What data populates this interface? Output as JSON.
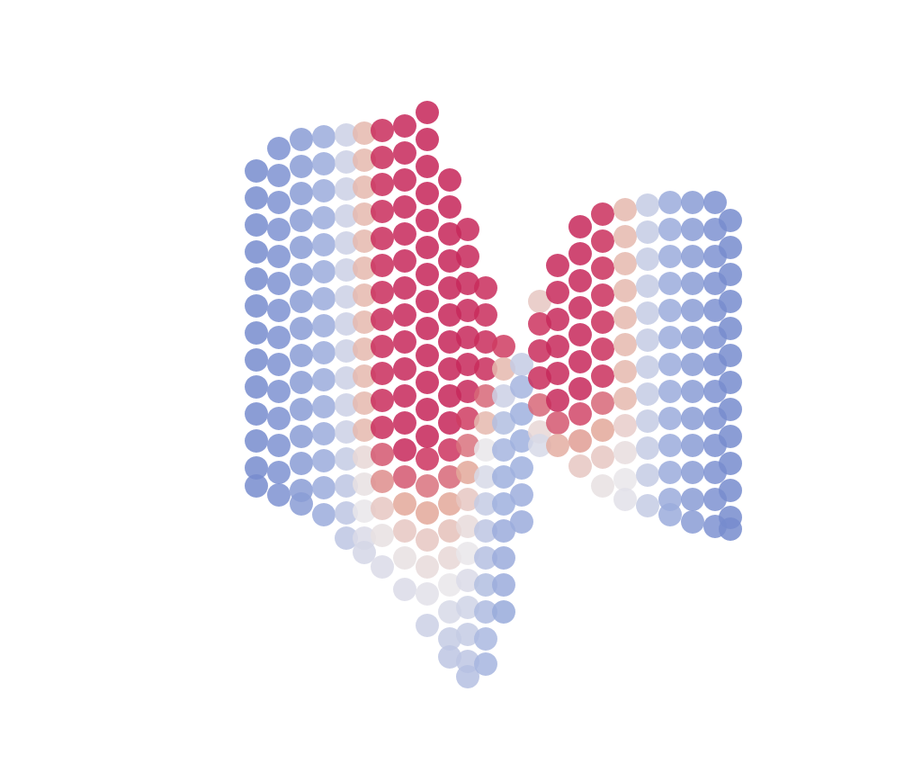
{
  "chart_data": {
    "type": "scatter",
    "xlim": [
      0,
      1015
    ],
    "ylim": [
      -869,
      0
    ],
    "tick_labels": false,
    "grid": false,
    "color_range": [
      0,
      1
    ],
    "points": [
      [
        285,
        -190,
        0.02
      ],
      [
        285,
        -220,
        0.02
      ],
      [
        285,
        -250,
        0.02
      ],
      [
        285,
        -280,
        0.02
      ],
      [
        285,
        -310,
        0.02
      ],
      [
        285,
        -340,
        0.02
      ],
      [
        285,
        -370,
        0.02
      ],
      [
        285,
        -400,
        0.02
      ],
      [
        285,
        -430,
        0.02
      ],
      [
        285,
        -460,
        0.02
      ],
      [
        285,
        -490,
        0.02
      ],
      [
        285,
        -520,
        0.02
      ],
      [
        285,
        -540,
        0.02
      ],
      [
        310,
        -165,
        0.05
      ],
      [
        310,
        -195,
        0.05
      ],
      [
        310,
        -225,
        0.05
      ],
      [
        310,
        -255,
        0.05
      ],
      [
        310,
        -285,
        0.05
      ],
      [
        310,
        -315,
        0.05
      ],
      [
        310,
        -345,
        0.05
      ],
      [
        310,
        -375,
        0.05
      ],
      [
        310,
        -405,
        0.05
      ],
      [
        310,
        -435,
        0.05
      ],
      [
        310,
        -465,
        0.05
      ],
      [
        310,
        -495,
        0.05
      ],
      [
        310,
        -525,
        0.05
      ],
      [
        310,
        -550,
        0.05
      ],
      [
        335,
        -155,
        0.1
      ],
      [
        335,
        -185,
        0.1
      ],
      [
        335,
        -215,
        0.1
      ],
      [
        335,
        -245,
        0.1
      ],
      [
        335,
        -275,
        0.1
      ],
      [
        335,
        -305,
        0.1
      ],
      [
        335,
        -335,
        0.1
      ],
      [
        335,
        -365,
        0.1
      ],
      [
        335,
        -395,
        0.1
      ],
      [
        335,
        -425,
        0.1
      ],
      [
        335,
        -455,
        0.1
      ],
      [
        335,
        -485,
        0.1
      ],
      [
        335,
        -515,
        0.1
      ],
      [
        335,
        -545,
        0.1
      ],
      [
        335,
        -560,
        0.1
      ],
      [
        360,
        -152,
        0.18
      ],
      [
        360,
        -182,
        0.18
      ],
      [
        360,
        -212,
        0.18
      ],
      [
        360,
        -242,
        0.18
      ],
      [
        360,
        -272,
        0.18
      ],
      [
        360,
        -302,
        0.18
      ],
      [
        360,
        -332,
        0.18
      ],
      [
        360,
        -362,
        0.18
      ],
      [
        360,
        -392,
        0.18
      ],
      [
        360,
        -422,
        0.18
      ],
      [
        360,
        -452,
        0.18
      ],
      [
        360,
        -482,
        0.18
      ],
      [
        360,
        -512,
        0.18
      ],
      [
        360,
        -542,
        0.18
      ],
      [
        360,
        -572,
        0.18
      ],
      [
        385,
        -150,
        0.32
      ],
      [
        385,
        -180,
        0.32
      ],
      [
        385,
        -210,
        0.32
      ],
      [
        385,
        -240,
        0.32
      ],
      [
        385,
        -270,
        0.32
      ],
      [
        385,
        -300,
        0.32
      ],
      [
        385,
        -330,
        0.32
      ],
      [
        385,
        -360,
        0.32
      ],
      [
        385,
        -390,
        0.32
      ],
      [
        385,
        -420,
        0.32
      ],
      [
        385,
        -450,
        0.32
      ],
      [
        385,
        -480,
        0.32
      ],
      [
        385,
        -510,
        0.3
      ],
      [
        385,
        -540,
        0.28
      ],
      [
        385,
        -570,
        0.28
      ],
      [
        385,
        -598,
        0.28
      ],
      [
        405,
        -148,
        0.55
      ],
      [
        405,
        -178,
        0.55
      ],
      [
        405,
        -208,
        0.55
      ],
      [
        405,
        -238,
        0.55
      ],
      [
        405,
        -268,
        0.55
      ],
      [
        405,
        -298,
        0.55
      ],
      [
        405,
        -328,
        0.55
      ],
      [
        405,
        -358,
        0.55
      ],
      [
        405,
        -388,
        0.55
      ],
      [
        405,
        -418,
        0.55
      ],
      [
        405,
        -448,
        0.55
      ],
      [
        405,
        -478,
        0.55
      ],
      [
        405,
        -508,
        0.45
      ],
      [
        405,
        -538,
        0.42
      ],
      [
        405,
        -568,
        0.4
      ],
      [
        405,
        -598,
        0.36
      ],
      [
        405,
        -614,
        0.34
      ],
      [
        425,
        -145,
        0.9
      ],
      [
        425,
        -175,
        0.9
      ],
      [
        425,
        -205,
        0.9
      ],
      [
        425,
        -235,
        0.9
      ],
      [
        425,
        -265,
        0.9
      ],
      [
        425,
        -295,
        0.9
      ],
      [
        425,
        -325,
        0.9
      ],
      [
        425,
        -355,
        0.9
      ],
      [
        425,
        -385,
        0.9
      ],
      [
        425,
        -415,
        0.9
      ],
      [
        425,
        -445,
        0.9
      ],
      [
        425,
        -475,
        0.9
      ],
      [
        425,
        -505,
        0.75
      ],
      [
        425,
        -535,
        0.65
      ],
      [
        425,
        -565,
        0.5
      ],
      [
        425,
        -595,
        0.42
      ],
      [
        425,
        -630,
        0.36
      ],
      [
        450,
        -140,
        0.93
      ],
      [
        450,
        -170,
        0.93
      ],
      [
        450,
        -200,
        0.93
      ],
      [
        450,
        -230,
        0.93
      ],
      [
        450,
        -260,
        0.93
      ],
      [
        450,
        -290,
        0.93
      ],
      [
        450,
        -320,
        0.93
      ],
      [
        450,
        -350,
        0.93
      ],
      [
        450,
        -380,
        0.93
      ],
      [
        450,
        -410,
        0.93
      ],
      [
        450,
        -440,
        0.93
      ],
      [
        450,
        -470,
        0.93
      ],
      [
        450,
        -500,
        0.93
      ],
      [
        450,
        -530,
        0.75
      ],
      [
        450,
        -560,
        0.6
      ],
      [
        450,
        -590,
        0.5
      ],
      [
        450,
        -620,
        0.42
      ],
      [
        450,
        -655,
        0.36
      ],
      [
        475,
        -125,
        0.95
      ],
      [
        475,
        -155,
        0.95
      ],
      [
        475,
        -185,
        0.95
      ],
      [
        475,
        -215,
        0.95
      ],
      [
        475,
        -245,
        0.95
      ],
      [
        475,
        -275,
        0.95
      ],
      [
        475,
        -305,
        0.95
      ],
      [
        475,
        -335,
        0.95
      ],
      [
        475,
        -365,
        0.95
      ],
      [
        475,
        -395,
        0.95
      ],
      [
        475,
        -425,
        0.95
      ],
      [
        475,
        -455,
        0.95
      ],
      [
        475,
        -485,
        0.95
      ],
      [
        475,
        -510,
        0.85
      ],
      [
        475,
        -540,
        0.7
      ],
      [
        475,
        -570,
        0.6
      ],
      [
        475,
        -600,
        0.5
      ],
      [
        475,
        -630,
        0.44
      ],
      [
        475,
        -660,
        0.38
      ],
      [
        475,
        -695,
        0.32
      ],
      [
        500,
        -200,
        0.95
      ],
      [
        500,
        -230,
        0.95
      ],
      [
        500,
        -260,
        0.95
      ],
      [
        500,
        -290,
        0.95
      ],
      [
        500,
        -320,
        0.95
      ],
      [
        500,
        -350,
        0.95
      ],
      [
        500,
        -380,
        0.95
      ],
      [
        500,
        -410,
        0.95
      ],
      [
        500,
        -440,
        0.95
      ],
      [
        500,
        -470,
        0.95
      ],
      [
        500,
        -500,
        0.85
      ],
      [
        500,
        -530,
        0.72
      ],
      [
        500,
        -560,
        0.6
      ],
      [
        500,
        -590,
        0.52
      ],
      [
        500,
        -620,
        0.45
      ],
      [
        500,
        -650,
        0.4
      ],
      [
        500,
        -680,
        0.35
      ],
      [
        500,
        -710,
        0.3
      ],
      [
        500,
        -730,
        0.28
      ],
      [
        520,
        -255,
        0.93
      ],
      [
        520,
        -285,
        0.93
      ],
      [
        520,
        -315,
        0.93
      ],
      [
        520,
        -345,
        0.93
      ],
      [
        520,
        -375,
        0.93
      ],
      [
        520,
        -405,
        0.93
      ],
      [
        520,
        -435,
        0.93
      ],
      [
        520,
        -465,
        0.8
      ],
      [
        520,
        -495,
        0.7
      ],
      [
        520,
        -525,
        0.6
      ],
      [
        520,
        -555,
        0.5
      ],
      [
        520,
        -585,
        0.44
      ],
      [
        520,
        -615,
        0.4
      ],
      [
        520,
        -645,
        0.36
      ],
      [
        520,
        -675,
        0.33
      ],
      [
        520,
        -705,
        0.3
      ],
      [
        520,
        -735,
        0.28
      ],
      [
        520,
        -752,
        0.26
      ],
      [
        540,
        -320,
        0.9
      ],
      [
        540,
        -350,
        0.9
      ],
      [
        540,
        -380,
        0.9
      ],
      [
        540,
        -410,
        0.9
      ],
      [
        540,
        -440,
        0.72
      ],
      [
        540,
        -470,
        0.55
      ],
      [
        540,
        -500,
        0.4
      ],
      [
        540,
        -530,
        0.35
      ],
      [
        540,
        -560,
        0.3
      ],
      [
        540,
        -590,
        0.28
      ],
      [
        540,
        -620,
        0.26
      ],
      [
        540,
        -650,
        0.25
      ],
      [
        540,
        -680,
        0.24
      ],
      [
        540,
        -710,
        0.23
      ],
      [
        540,
        -738,
        0.22
      ],
      [
        560,
        -385,
        0.8
      ],
      [
        560,
        -410,
        0.55
      ],
      [
        560,
        -440,
        0.32
      ],
      [
        560,
        -470,
        0.25
      ],
      [
        560,
        -500,
        0.22
      ],
      [
        560,
        -530,
        0.2
      ],
      [
        560,
        -560,
        0.2
      ],
      [
        560,
        -590,
        0.18
      ],
      [
        560,
        -620,
        0.18
      ],
      [
        560,
        -650,
        0.18
      ],
      [
        560,
        -680,
        0.17
      ],
      [
        580,
        -405,
        0.3
      ],
      [
        580,
        -430,
        0.22
      ],
      [
        580,
        -460,
        0.2
      ],
      [
        580,
        -490,
        0.2
      ],
      [
        580,
        -520,
        0.2
      ],
      [
        580,
        -550,
        0.19
      ],
      [
        580,
        -580,
        0.18
      ],
      [
        600,
        -335,
        0.5
      ],
      [
        600,
        -360,
        0.85
      ],
      [
        600,
        -390,
        0.9
      ],
      [
        600,
        -420,
        0.9
      ],
      [
        600,
        -450,
        0.72
      ],
      [
        600,
        -480,
        0.45
      ],
      [
        600,
        -495,
        0.35
      ],
      [
        620,
        -295,
        0.92
      ],
      [
        620,
        -325,
        0.92
      ],
      [
        620,
        -355,
        0.92
      ],
      [
        620,
        -385,
        0.92
      ],
      [
        620,
        -415,
        0.92
      ],
      [
        620,
        -445,
        0.92
      ],
      [
        620,
        -470,
        0.75
      ],
      [
        620,
        -495,
        0.58
      ],
      [
        645,
        -252,
        0.93
      ],
      [
        645,
        -282,
        0.93
      ],
      [
        645,
        -312,
        0.93
      ],
      [
        645,
        -342,
        0.93
      ],
      [
        645,
        -372,
        0.93
      ],
      [
        645,
        -402,
        0.93
      ],
      [
        645,
        -432,
        0.93
      ],
      [
        645,
        -460,
        0.78
      ],
      [
        645,
        -490,
        0.62
      ],
      [
        645,
        -518,
        0.5
      ],
      [
        670,
        -238,
        0.88
      ],
      [
        670,
        -268,
        0.88
      ],
      [
        670,
        -298,
        0.88
      ],
      [
        670,
        -328,
        0.88
      ],
      [
        670,
        -358,
        0.88
      ],
      [
        670,
        -388,
        0.88
      ],
      [
        670,
        -418,
        0.88
      ],
      [
        670,
        -448,
        0.72
      ],
      [
        670,
        -478,
        0.6
      ],
      [
        670,
        -508,
        0.5
      ],
      [
        670,
        -540,
        0.42
      ],
      [
        695,
        -233,
        0.55
      ],
      [
        695,
        -263,
        0.55
      ],
      [
        695,
        -293,
        0.55
      ],
      [
        695,
        -323,
        0.55
      ],
      [
        695,
        -353,
        0.55
      ],
      [
        695,
        -383,
        0.55
      ],
      [
        695,
        -413,
        0.55
      ],
      [
        695,
        -443,
        0.55
      ],
      [
        695,
        -473,
        0.48
      ],
      [
        695,
        -503,
        0.43
      ],
      [
        695,
        -533,
        0.4
      ],
      [
        695,
        -555,
        0.38
      ],
      [
        720,
        -228,
        0.3
      ],
      [
        720,
        -258,
        0.3
      ],
      [
        720,
        -288,
        0.3
      ],
      [
        720,
        -318,
        0.3
      ],
      [
        720,
        -348,
        0.3
      ],
      [
        720,
        -378,
        0.3
      ],
      [
        720,
        -408,
        0.3
      ],
      [
        720,
        -438,
        0.3
      ],
      [
        720,
        -468,
        0.3
      ],
      [
        720,
        -498,
        0.3
      ],
      [
        720,
        -528,
        0.3
      ],
      [
        720,
        -562,
        0.3
      ],
      [
        745,
        -225,
        0.18
      ],
      [
        745,
        -255,
        0.18
      ],
      [
        745,
        -285,
        0.18
      ],
      [
        745,
        -315,
        0.18
      ],
      [
        745,
        -345,
        0.18
      ],
      [
        745,
        -375,
        0.18
      ],
      [
        745,
        -405,
        0.18
      ],
      [
        745,
        -435,
        0.18
      ],
      [
        745,
        -465,
        0.18
      ],
      [
        745,
        -495,
        0.18
      ],
      [
        745,
        -525,
        0.18
      ],
      [
        745,
        -555,
        0.18
      ],
      [
        745,
        -572,
        0.18
      ],
      [
        770,
        -225,
        0.1
      ],
      [
        770,
        -255,
        0.1
      ],
      [
        770,
        -285,
        0.1
      ],
      [
        770,
        -315,
        0.1
      ],
      [
        770,
        -345,
        0.1
      ],
      [
        770,
        -375,
        0.1
      ],
      [
        770,
        -405,
        0.1
      ],
      [
        770,
        -435,
        0.1
      ],
      [
        770,
        -465,
        0.1
      ],
      [
        770,
        -495,
        0.1
      ],
      [
        770,
        -525,
        0.1
      ],
      [
        770,
        -555,
        0.1
      ],
      [
        770,
        -580,
        0.1
      ],
      [
        795,
        -225,
        0.05
      ],
      [
        795,
        -255,
        0.05
      ],
      [
        795,
        -285,
        0.05
      ],
      [
        795,
        -315,
        0.05
      ],
      [
        795,
        -345,
        0.05
      ],
      [
        795,
        -375,
        0.05
      ],
      [
        795,
        -405,
        0.05
      ],
      [
        795,
        -435,
        0.05
      ],
      [
        795,
        -465,
        0.05
      ],
      [
        795,
        -495,
        0.05
      ],
      [
        795,
        -525,
        0.05
      ],
      [
        795,
        -555,
        0.05
      ],
      [
        795,
        -585,
        0.05
      ],
      [
        812,
        -245,
        0.02
      ],
      [
        812,
        -275,
        0.02
      ],
      [
        812,
        -305,
        0.02
      ],
      [
        812,
        -335,
        0.02
      ],
      [
        812,
        -365,
        0.02
      ],
      [
        812,
        -395,
        0.02
      ],
      [
        812,
        -425,
        0.02
      ],
      [
        812,
        -455,
        0.02
      ],
      [
        812,
        -485,
        0.02
      ],
      [
        812,
        -515,
        0.02
      ],
      [
        812,
        -545,
        0.02
      ],
      [
        812,
        -575,
        0.02
      ],
      [
        812,
        -588,
        0.02
      ]
    ]
  }
}
